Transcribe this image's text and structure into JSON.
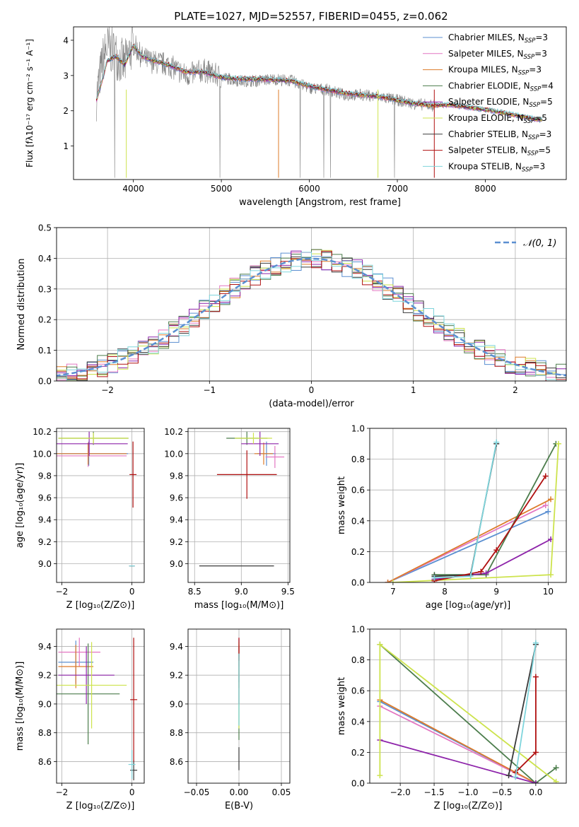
{
  "figure": {
    "title": "PLATE=1027, MJD=52557, FIBERID=0455, z=0.062"
  },
  "chart_data": [
    {
      "id": "spectrum",
      "type": "line",
      "xlabel": "wavelength [Angstrom, rest frame]",
      "ylabel": "Flux [fλ10⁻¹⁷ erg cm⁻² s⁻¹ A⁻¹]",
      "xlim": [
        3320,
        8920
      ],
      "ylim": [
        0.05,
        4.38
      ],
      "xticks": [
        4000,
        5000,
        6000,
        7000,
        8000
      ],
      "yticks": [
        1,
        2,
        3,
        4
      ],
      "grid": false,
      "legend_position": "top-right",
      "data_color": "#808080",
      "data_approx": [
        [
          3580,
          2.4
        ],
        [
          3650,
          3.4
        ],
        [
          3700,
          3.8
        ],
        [
          3800,
          3.6
        ],
        [
          3900,
          3.3
        ],
        [
          4000,
          3.9
        ],
        [
          4100,
          3.5
        ],
        [
          4200,
          3.4
        ],
        [
          4400,
          3.3
        ],
        [
          4600,
          3.0
        ],
        [
          4800,
          3.15
        ],
        [
          5000,
          2.95
        ],
        [
          5200,
          2.85
        ],
        [
          5400,
          2.85
        ],
        [
          5600,
          2.9
        ],
        [
          5800,
          2.85
        ],
        [
          6000,
          2.65
        ],
        [
          6200,
          2.6
        ],
        [
          6400,
          2.45
        ],
        [
          6600,
          2.45
        ],
        [
          6800,
          2.4
        ],
        [
          7000,
          2.3
        ],
        [
          7200,
          2.2
        ],
        [
          7400,
          2.15
        ],
        [
          7600,
          2.2
        ],
        [
          7800,
          2.1
        ],
        [
          8000,
          2.05
        ],
        [
          8200,
          1.95
        ],
        [
          8400,
          1.85
        ],
        [
          8600,
          1.75
        ]
      ],
      "model_approx": [
        [
          3580,
          2.3
        ],
        [
          3650,
          2.9
        ],
        [
          3700,
          3.4
        ],
        [
          3800,
          3.55
        ],
        [
          3900,
          3.3
        ],
        [
          4000,
          3.85
        ],
        [
          4100,
          3.55
        ],
        [
          4200,
          3.45
        ],
        [
          4400,
          3.3
        ],
        [
          4600,
          3.1
        ],
        [
          4800,
          3.1
        ],
        [
          5000,
          2.95
        ],
        [
          5200,
          2.9
        ],
        [
          5400,
          2.9
        ],
        [
          5600,
          2.88
        ],
        [
          5800,
          2.85
        ],
        [
          6000,
          2.7
        ],
        [
          6200,
          2.6
        ],
        [
          6400,
          2.5
        ],
        [
          6600,
          2.45
        ],
        [
          6800,
          2.4
        ],
        [
          7000,
          2.3
        ],
        [
          7200,
          2.2
        ],
        [
          7400,
          2.15
        ],
        [
          7600,
          2.17
        ],
        [
          7800,
          2.1
        ],
        [
          8000,
          2.03
        ],
        [
          8200,
          1.95
        ],
        [
          8400,
          1.85
        ],
        [
          8600,
          1.75
        ]
      ],
      "series": [
        {
          "name": "Chabrier MILES, N",
          "sub": "SSP",
          "suffix": "=3",
          "color": "#5b8fd1"
        },
        {
          "name": "Salpeter MILES, N",
          "sub": "SSP",
          "suffix": "=3",
          "color": "#e377c2"
        },
        {
          "name": "Kroupa MILES, N",
          "sub": "SSP",
          "suffix": "=3",
          "color": "#dd7b2a"
        },
        {
          "name": "Chabrier ELODIE, N",
          "sub": "SSP",
          "suffix": "=4",
          "color": "#4c7d4c"
        },
        {
          "name": "Salpeter ELODIE, N",
          "sub": "SSP",
          "suffix": "=5",
          "color": "#8e24aa"
        },
        {
          "name": "Kroupa ELODIE, N",
          "sub": "SSP",
          "suffix": "=5",
          "color": "#cde34d"
        },
        {
          "name": "Chabrier STELIB, N",
          "sub": "SSP",
          "suffix": "=3",
          "color": "#3a3a3a"
        },
        {
          "name": "Salpeter STELIB, N",
          "sub": "SSP",
          "suffix": "=5",
          "color": "#b01010"
        },
        {
          "name": "Kroupa STELIB, N",
          "sub": "SSP",
          "suffix": "=3",
          "color": "#7fd5dc"
        }
      ]
    },
    {
      "id": "residuals",
      "type": "histogram",
      "xlabel": "(data-model)/error",
      "ylabel": "Normed distribution",
      "xlim": [
        -2.5,
        2.5
      ],
      "ylim": [
        0,
        0.5
      ],
      "xticks": [
        -2,
        -1,
        0,
        1,
        2
      ],
      "yticks": [
        0.0,
        0.1,
        0.2,
        0.3,
        0.4,
        0.5
      ],
      "grid": true,
      "bin_width": 0.1,
      "legend": {
        "label": "𝒩(0, 1)",
        "color": "#5b8fd1",
        "style": "dashed"
      },
      "series_colors": [
        "#5b8fd1",
        "#e377c2",
        "#dd7b2a",
        "#4c7d4c",
        "#8e24aa",
        "#cde34d",
        "#3a3a3a",
        "#b01010",
        "#7fd5dc"
      ]
    },
    {
      "id": "age-vs-Z",
      "type": "errorbar",
      "xlabel": "Z [log₁₀(Z/Z⊙)]",
      "ylabel": "age  [log₁₀(age/yr)]",
      "xlim": [
        -2.15,
        0.35
      ],
      "ylim": [
        8.83,
        10.23
      ],
      "xticks": [
        -2,
        0
      ],
      "yticks": [
        9.0,
        9.2,
        9.4,
        9.6,
        9.8,
        10.0,
        10.2
      ],
      "grid": true,
      "points": [
        {
          "x": -1.23,
          "y": 10.0,
          "xerr": 1.12,
          "yerr": 0.11,
          "color": "#5b8fd1"
        },
        {
          "x": -1.25,
          "y": 9.98,
          "xerr": 1.1,
          "yerr": 0.1,
          "color": "#e377c2"
        },
        {
          "x": -1.25,
          "y": 10.0,
          "xerr": 1.1,
          "yerr": 0.1,
          "color": "#dd7b2a"
        },
        {
          "x": -1.1,
          "y": 10.14,
          "xerr": 1.0,
          "yerr": 0.06,
          "color": "#4c7d4c"
        },
        {
          "x": -1.22,
          "y": 10.09,
          "xerr": 1.1,
          "yerr": 0.11,
          "color": "#8e24aa"
        },
        {
          "x": -1.1,
          "y": 10.14,
          "xerr": 1.0,
          "yerr": 0.05,
          "color": "#cde34d"
        },
        {
          "x": 0.0,
          "y": 8.98,
          "xerr": 0.08,
          "yerr": 0.0,
          "color": "#3a3a3a"
        },
        {
          "x": 0.03,
          "y": 9.81,
          "xerr": 0.1,
          "yerr": 0.3,
          "color": "#b01010"
        },
        {
          "x": 0.0,
          "y": 8.98,
          "xerr": 0.08,
          "yerr": 0.0,
          "color": "#7fd5dc"
        }
      ]
    },
    {
      "id": "age-vs-mass",
      "type": "errorbar",
      "xlabel": "mass [log₁₀(M/M⊙)]",
      "ylabel": "",
      "xlim": [
        8.43,
        9.52
      ],
      "ylim": [
        8.83,
        10.23
      ],
      "xticks": [
        8.5,
        9.0,
        9.5
      ],
      "yticks": [
        9.0,
        9.2,
        9.4,
        9.6,
        9.8,
        10.0,
        10.2
      ],
      "grid": true,
      "points": [
        {
          "x": 9.27,
          "y": 10.0,
          "xerr": 0.1,
          "yerr": 0.11,
          "color": "#5b8fd1"
        },
        {
          "x": 9.36,
          "y": 9.97,
          "xerr": 0.1,
          "yerr": 0.1,
          "color": "#e377c2"
        },
        {
          "x": 9.24,
          "y": 10.0,
          "xerr": 0.1,
          "yerr": 0.1,
          "color": "#dd7b2a"
        },
        {
          "x": 9.06,
          "y": 10.14,
          "xerr": 0.22,
          "yerr": 0.06,
          "color": "#4c7d4c"
        },
        {
          "x": 9.2,
          "y": 10.09,
          "xerr": 0.2,
          "yerr": 0.11,
          "color": "#8e24aa"
        },
        {
          "x": 9.13,
          "y": 10.14,
          "xerr": 0.2,
          "yerr": 0.05,
          "color": "#cde34d"
        },
        {
          "x": 8.95,
          "y": 8.98,
          "xerr": 0.4,
          "yerr": 0.0,
          "color": "#3a3a3a"
        },
        {
          "x": 9.06,
          "y": 9.81,
          "xerr": 0.32,
          "yerr": 0.22,
          "color": "#b01010"
        },
        {
          "x": 8.57,
          "y": 8.98,
          "xerr": 0.0,
          "yerr": 0.0,
          "color": "#7fd5dc"
        }
      ]
    },
    {
      "id": "weight-vs-age",
      "type": "line",
      "xlabel": "age  [log₁₀(age/yr)]",
      "ylabel": "mass weight",
      "xlim": [
        6.55,
        10.35
      ],
      "ylim": [
        0,
        1.0
      ],
      "xticks": [
        7,
        8,
        9,
        10
      ],
      "yticks": [
        0.0,
        0.2,
        0.4,
        0.6,
        0.8,
        1.0
      ],
      "grid": true,
      "series": [
        {
          "color": "#5b8fd1",
          "points": [
            [
              6.9,
              0.0
            ],
            [
              10.0,
              0.46
            ]
          ]
        },
        {
          "color": "#e377c2",
          "points": [
            [
              6.9,
              0.0
            ],
            [
              9.95,
              0.5
            ]
          ]
        },
        {
          "color": "#dd7b2a",
          "points": [
            [
              6.9,
              0.0
            ],
            [
              10.05,
              0.54
            ]
          ]
        },
        {
          "color": "#4c7d4c",
          "points": [
            [
              7.8,
              0.05
            ],
            [
              8.8,
              0.05
            ],
            [
              10.15,
              0.9
            ]
          ]
        },
        {
          "color": "#8e24aa",
          "points": [
            [
              7.8,
              0.02
            ],
            [
              8.8,
              0.06
            ],
            [
              10.05,
              0.28
            ]
          ]
        },
        {
          "color": "#cde34d",
          "points": [
            [
              7.0,
              0.0
            ],
            [
              10.05,
              0.05
            ],
            [
              10.2,
              0.9
            ]
          ]
        },
        {
          "color": "#3a3a3a",
          "points": [
            [
              7.8,
              0.04
            ],
            [
              8.5,
              0.05
            ],
            [
              9.0,
              0.9
            ]
          ]
        },
        {
          "color": "#b01010",
          "points": [
            [
              7.8,
              0.01
            ],
            [
              8.7,
              0.07
            ],
            [
              9.0,
              0.21
            ],
            [
              9.95,
              0.69
            ]
          ]
        },
        {
          "color": "#7fd5dc",
          "points": [
            [
              7.8,
              0.03
            ],
            [
              8.5,
              0.04
            ],
            [
              9.0,
              0.91
            ]
          ]
        }
      ]
    },
    {
      "id": "mass-vs-Z",
      "type": "errorbar",
      "xlabel": "Z [log₁₀(Z/Z⊙)]",
      "ylabel": "mass [log₁₀(M/M⊙)]",
      "xlim": [
        -2.15,
        0.35
      ],
      "ylim": [
        8.45,
        9.52
      ],
      "xticks": [
        -2,
        0
      ],
      "yticks": [
        8.6,
        8.8,
        9.0,
        9.2,
        9.4
      ],
      "grid": true,
      "points": [
        {
          "x": -1.6,
          "y": 9.29,
          "xerr": 0.5,
          "yerr": 0.15,
          "color": "#5b8fd1"
        },
        {
          "x": -1.5,
          "y": 9.36,
          "xerr": 0.6,
          "yerr": 0.1,
          "color": "#e377c2"
        },
        {
          "x": -1.6,
          "y": 9.26,
          "xerr": 0.5,
          "yerr": 0.15,
          "color": "#dd7b2a"
        },
        {
          "x": -1.25,
          "y": 9.07,
          "xerr": 0.9,
          "yerr": 0.35,
          "color": "#4c7d4c"
        },
        {
          "x": -1.3,
          "y": 9.2,
          "xerr": 0.8,
          "yerr": 0.2,
          "color": "#8e24aa"
        },
        {
          "x": -1.15,
          "y": 9.13,
          "xerr": 1.0,
          "yerr": 0.3,
          "color": "#cde34d"
        },
        {
          "x": 0.05,
          "y": 8.54,
          "xerr": 0.1,
          "yerr": 0.07,
          "color": "#3a3a3a"
        },
        {
          "x": 0.05,
          "y": 9.03,
          "xerr": 0.1,
          "yerr": 0.43,
          "color": "#b01010"
        },
        {
          "x": 0.0,
          "y": 8.58,
          "xerr": 0.1,
          "yerr": 0.1,
          "color": "#7fd5dc"
        }
      ]
    },
    {
      "id": "mass-vs-ebv",
      "type": "errorbar",
      "xlabel": "E(B-V)",
      "ylabel": "",
      "xlim": [
        -0.06,
        0.06
      ],
      "ylim": [
        8.45,
        9.52
      ],
      "xticks": [
        -0.05,
        0.0,
        0.05
      ],
      "xticklabels": [
        "−0.05",
        "0.00",
        "0.05"
      ],
      "yticks": [
        8.6,
        8.8,
        9.0,
        9.2,
        9.4
      ],
      "grid": true,
      "points": [
        {
          "x": 0.0,
          "y": 9.3,
          "xerr": 0,
          "yerr": 0.15,
          "color": "#5b8fd1"
        },
        {
          "x": 0.0,
          "y": 9.36,
          "xerr": 0,
          "yerr": 0.1,
          "color": "#e377c2"
        },
        {
          "x": 0.0,
          "y": 9.26,
          "xerr": 0,
          "yerr": 0.15,
          "color": "#dd7b2a"
        },
        {
          "x": 0.0,
          "y": 9.05,
          "xerr": 0,
          "yerr": 0.3,
          "color": "#4c7d4c"
        },
        {
          "x": 0.0,
          "y": 9.2,
          "xerr": 0,
          "yerr": 0.2,
          "color": "#8e24aa"
        },
        {
          "x": 0.0,
          "y": 9.13,
          "xerr": 0,
          "yerr": 0.3,
          "color": "#cde34d"
        },
        {
          "x": 0.0,
          "y": 8.62,
          "xerr": 0,
          "yerr": 0.08,
          "color": "#3a3a3a"
        },
        {
          "x": 0.0,
          "y": 9.38,
          "xerr": 0,
          "yerr": 0.08,
          "color": "#b01010"
        },
        {
          "x": 0.0,
          "y": 9.1,
          "xerr": 0,
          "yerr": 0.25,
          "color": "#7fd5dc"
        }
      ]
    },
    {
      "id": "weight-vs-Z",
      "type": "line",
      "xlabel": "Z [log₁₀(Z/Z⊙)]",
      "ylabel": "mass weight",
      "xlim": [
        -2.45,
        0.45
      ],
      "ylim": [
        0,
        1.0
      ],
      "xticks": [
        -2.0,
        -1.5,
        -1.0,
        -0.5,
        0.0
      ],
      "xticklabels": [
        "−2.0",
        "−1.5",
        "−1.0",
        "−0.5",
        "0.0"
      ],
      "yticks": [
        0.0,
        0.2,
        0.4,
        0.6,
        0.8,
        1.0
      ],
      "grid": true,
      "series": [
        {
          "color": "#5b8fd1",
          "points": [
            [
              -2.3,
              0.53
            ],
            [
              0.0,
              0.0
            ]
          ]
        },
        {
          "color": "#e377c2",
          "points": [
            [
              -2.3,
              0.5
            ],
            [
              0.0,
              0.0
            ]
          ]
        },
        {
          "color": "#dd7b2a",
          "points": [
            [
              -2.3,
              0.54
            ],
            [
              0.0,
              0.0
            ]
          ]
        },
        {
          "color": "#4c7d4c",
          "points": [
            [
              -2.3,
              0.9
            ],
            [
              0.0,
              0.0
            ],
            [
              0.3,
              0.1
            ]
          ]
        },
        {
          "color": "#8e24aa",
          "points": [
            [
              -2.3,
              0.28
            ],
            [
              0.0,
              0.0
            ]
          ]
        },
        {
          "color": "#cde34d",
          "points": [
            [
              -2.3,
              0.05
            ],
            [
              -2.3,
              0.9
            ],
            [
              0.3,
              0.01
            ]
          ]
        },
        {
          "color": "#3a3a3a",
          "points": [
            [
              -0.4,
              0.05
            ],
            [
              0.0,
              0.9
            ]
          ]
        },
        {
          "color": "#b01010",
          "points": [
            [
              -0.3,
              0.07
            ],
            [
              0.0,
              0.2
            ],
            [
              0.0,
              0.69
            ]
          ]
        },
        {
          "color": "#7fd5dc",
          "points": [
            [
              -0.3,
              0.04
            ],
            [
              0.0,
              0.91
            ]
          ]
        }
      ]
    }
  ]
}
